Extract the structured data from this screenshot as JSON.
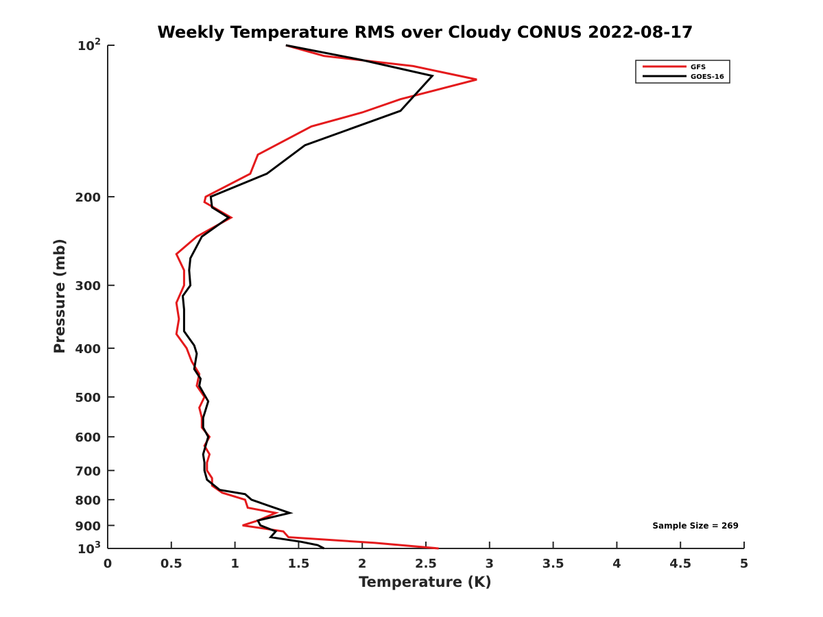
{
  "chart_data": {
    "type": "line",
    "title": "Weekly Temperature RMS over Cloudy CONUS 2022-08-17",
    "xlabel": "Temperature (K)",
    "ylabel": "Pressure (mb)",
    "xlim": [
      0,
      5
    ],
    "ylim": [
      100,
      1000
    ],
    "y_scale": "log",
    "y_reversed": true,
    "x_ticks": [
      0,
      0.5,
      1,
      1.5,
      2,
      2.5,
      3,
      3.5,
      4,
      4.5,
      5
    ],
    "x_tick_labels": [
      "0",
      "0.5",
      "1",
      "1.5",
      "2",
      "2.5",
      "3",
      "3.5",
      "4",
      "4.5",
      "5"
    ],
    "y_ticks": [
      100,
      200,
      300,
      400,
      500,
      600,
      700,
      800,
      900,
      1000
    ],
    "y_tick_labels": [
      {
        "base": "10",
        "exp": "2"
      },
      {
        "base": "200",
        "exp": ""
      },
      {
        "base": "300",
        "exp": ""
      },
      {
        "base": "400",
        "exp": ""
      },
      {
        "base": "500",
        "exp": ""
      },
      {
        "base": "600",
        "exp": ""
      },
      {
        "base": "700",
        "exp": ""
      },
      {
        "base": "800",
        "exp": ""
      },
      {
        "base": "900",
        "exp": ""
      },
      {
        "base": "10",
        "exp": "3"
      }
    ],
    "grid": false,
    "legend_position": "top-right",
    "annotation": "Sample Size = 269",
    "series": [
      {
        "name": "GFS",
        "color": "#e41a1c",
        "points": [
          [
            2.6,
            1000
          ],
          [
            2.1,
            975
          ],
          [
            1.42,
            950
          ],
          [
            1.38,
            925
          ],
          [
            1.06,
            900
          ],
          [
            1.18,
            880
          ],
          [
            1.32,
            850
          ],
          [
            1.1,
            830
          ],
          [
            1.08,
            800
          ],
          [
            0.9,
            775
          ],
          [
            0.82,
            750
          ],
          [
            0.82,
            725
          ],
          [
            0.78,
            700
          ],
          [
            0.78,
            675
          ],
          [
            0.8,
            650
          ],
          [
            0.76,
            625
          ],
          [
            0.8,
            600
          ],
          [
            0.74,
            575
          ],
          [
            0.74,
            550
          ],
          [
            0.72,
            525
          ],
          [
            0.76,
            500
          ],
          [
            0.7,
            475
          ],
          [
            0.72,
            450
          ],
          [
            0.66,
            425
          ],
          [
            0.62,
            400
          ],
          [
            0.54,
            375
          ],
          [
            0.56,
            350
          ],
          [
            0.54,
            325
          ],
          [
            0.6,
            300
          ],
          [
            0.6,
            280
          ],
          [
            0.54,
            260
          ],
          [
            0.7,
            240
          ],
          [
            0.97,
            220
          ],
          [
            0.76,
            205
          ],
          [
            0.77,
            200
          ],
          [
            1.12,
            180
          ],
          [
            1.18,
            165
          ],
          [
            1.6,
            145
          ],
          [
            2.0,
            136
          ],
          [
            2.3,
            128
          ],
          [
            2.9,
            117
          ],
          [
            2.4,
            110
          ],
          [
            1.7,
            105
          ],
          [
            1.4,
            100
          ]
        ]
      },
      {
        "name": "GOES-16",
        "color": "#000000",
        "points": [
          [
            1.7,
            1000
          ],
          [
            1.65,
            985
          ],
          [
            1.52,
            970
          ],
          [
            1.28,
            950
          ],
          [
            1.32,
            925
          ],
          [
            1.2,
            900
          ],
          [
            1.18,
            880
          ],
          [
            1.43,
            850
          ],
          [
            1.28,
            825
          ],
          [
            1.13,
            800
          ],
          [
            1.08,
            780
          ],
          [
            0.88,
            765
          ],
          [
            0.78,
            730
          ],
          [
            0.76,
            700
          ],
          [
            0.76,
            675
          ],
          [
            0.75,
            650
          ],
          [
            0.79,
            600
          ],
          [
            0.75,
            575
          ],
          [
            0.75,
            550
          ],
          [
            0.77,
            530
          ],
          [
            0.79,
            510
          ],
          [
            0.75,
            490
          ],
          [
            0.72,
            475
          ],
          [
            0.73,
            460
          ],
          [
            0.68,
            440
          ],
          [
            0.7,
            410
          ],
          [
            0.68,
            395
          ],
          [
            0.6,
            370
          ],
          [
            0.6,
            335
          ],
          [
            0.59,
            315
          ],
          [
            0.65,
            300
          ],
          [
            0.64,
            280
          ],
          [
            0.65,
            265
          ],
          [
            0.74,
            240
          ],
          [
            0.95,
            220
          ],
          [
            0.82,
            210
          ],
          [
            0.81,
            200
          ],
          [
            1.25,
            180
          ],
          [
            1.55,
            158
          ],
          [
            2.3,
            135
          ],
          [
            2.55,
            115
          ],
          [
            2.0,
            107
          ],
          [
            1.4,
            100
          ]
        ]
      }
    ]
  }
}
